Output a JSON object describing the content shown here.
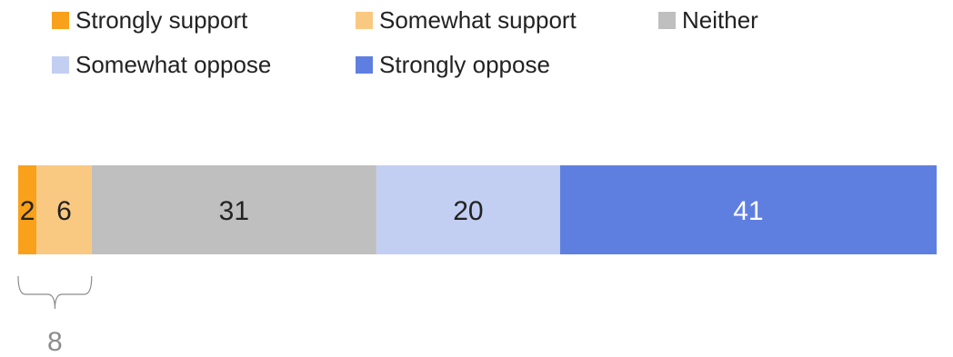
{
  "chart_data": {
    "type": "bar",
    "orientation": "horizontal",
    "stacked": true,
    "title": "",
    "xlabel": "",
    "ylabel": "",
    "categories": [
      ""
    ],
    "xlim": [
      0,
      100
    ],
    "grid": false,
    "legend_position": "top-left",
    "series": [
      {
        "name": "Strongly support",
        "values": [
          2
        ],
        "label": "2",
        "color": "#f9a11b",
        "label_color": "#222222"
      },
      {
        "name": "Somewhat support",
        "values": [
          6
        ],
        "label": "6",
        "color": "#f9c982",
        "label_color": "#222222"
      },
      {
        "name": "Neither",
        "values": [
          31
        ],
        "label": "31",
        "color": "#bfbfbf",
        "label_color": "#222222"
      },
      {
        "name": "Somewhat oppose",
        "values": [
          20
        ],
        "label": "20",
        "color": "#c3cff2",
        "label_color": "#222222"
      },
      {
        "name": "Strongly oppose",
        "values": [
          41
        ],
        "label": "41",
        "color": "#5f7fe0",
        "label_color": "#ffffff"
      }
    ],
    "annotations": [
      {
        "type": "bracket",
        "spans_series": [
          "Strongly support",
          "Somewhat support"
        ],
        "value": 8,
        "text": "8",
        "color": "#8c8c8c"
      }
    ]
  }
}
